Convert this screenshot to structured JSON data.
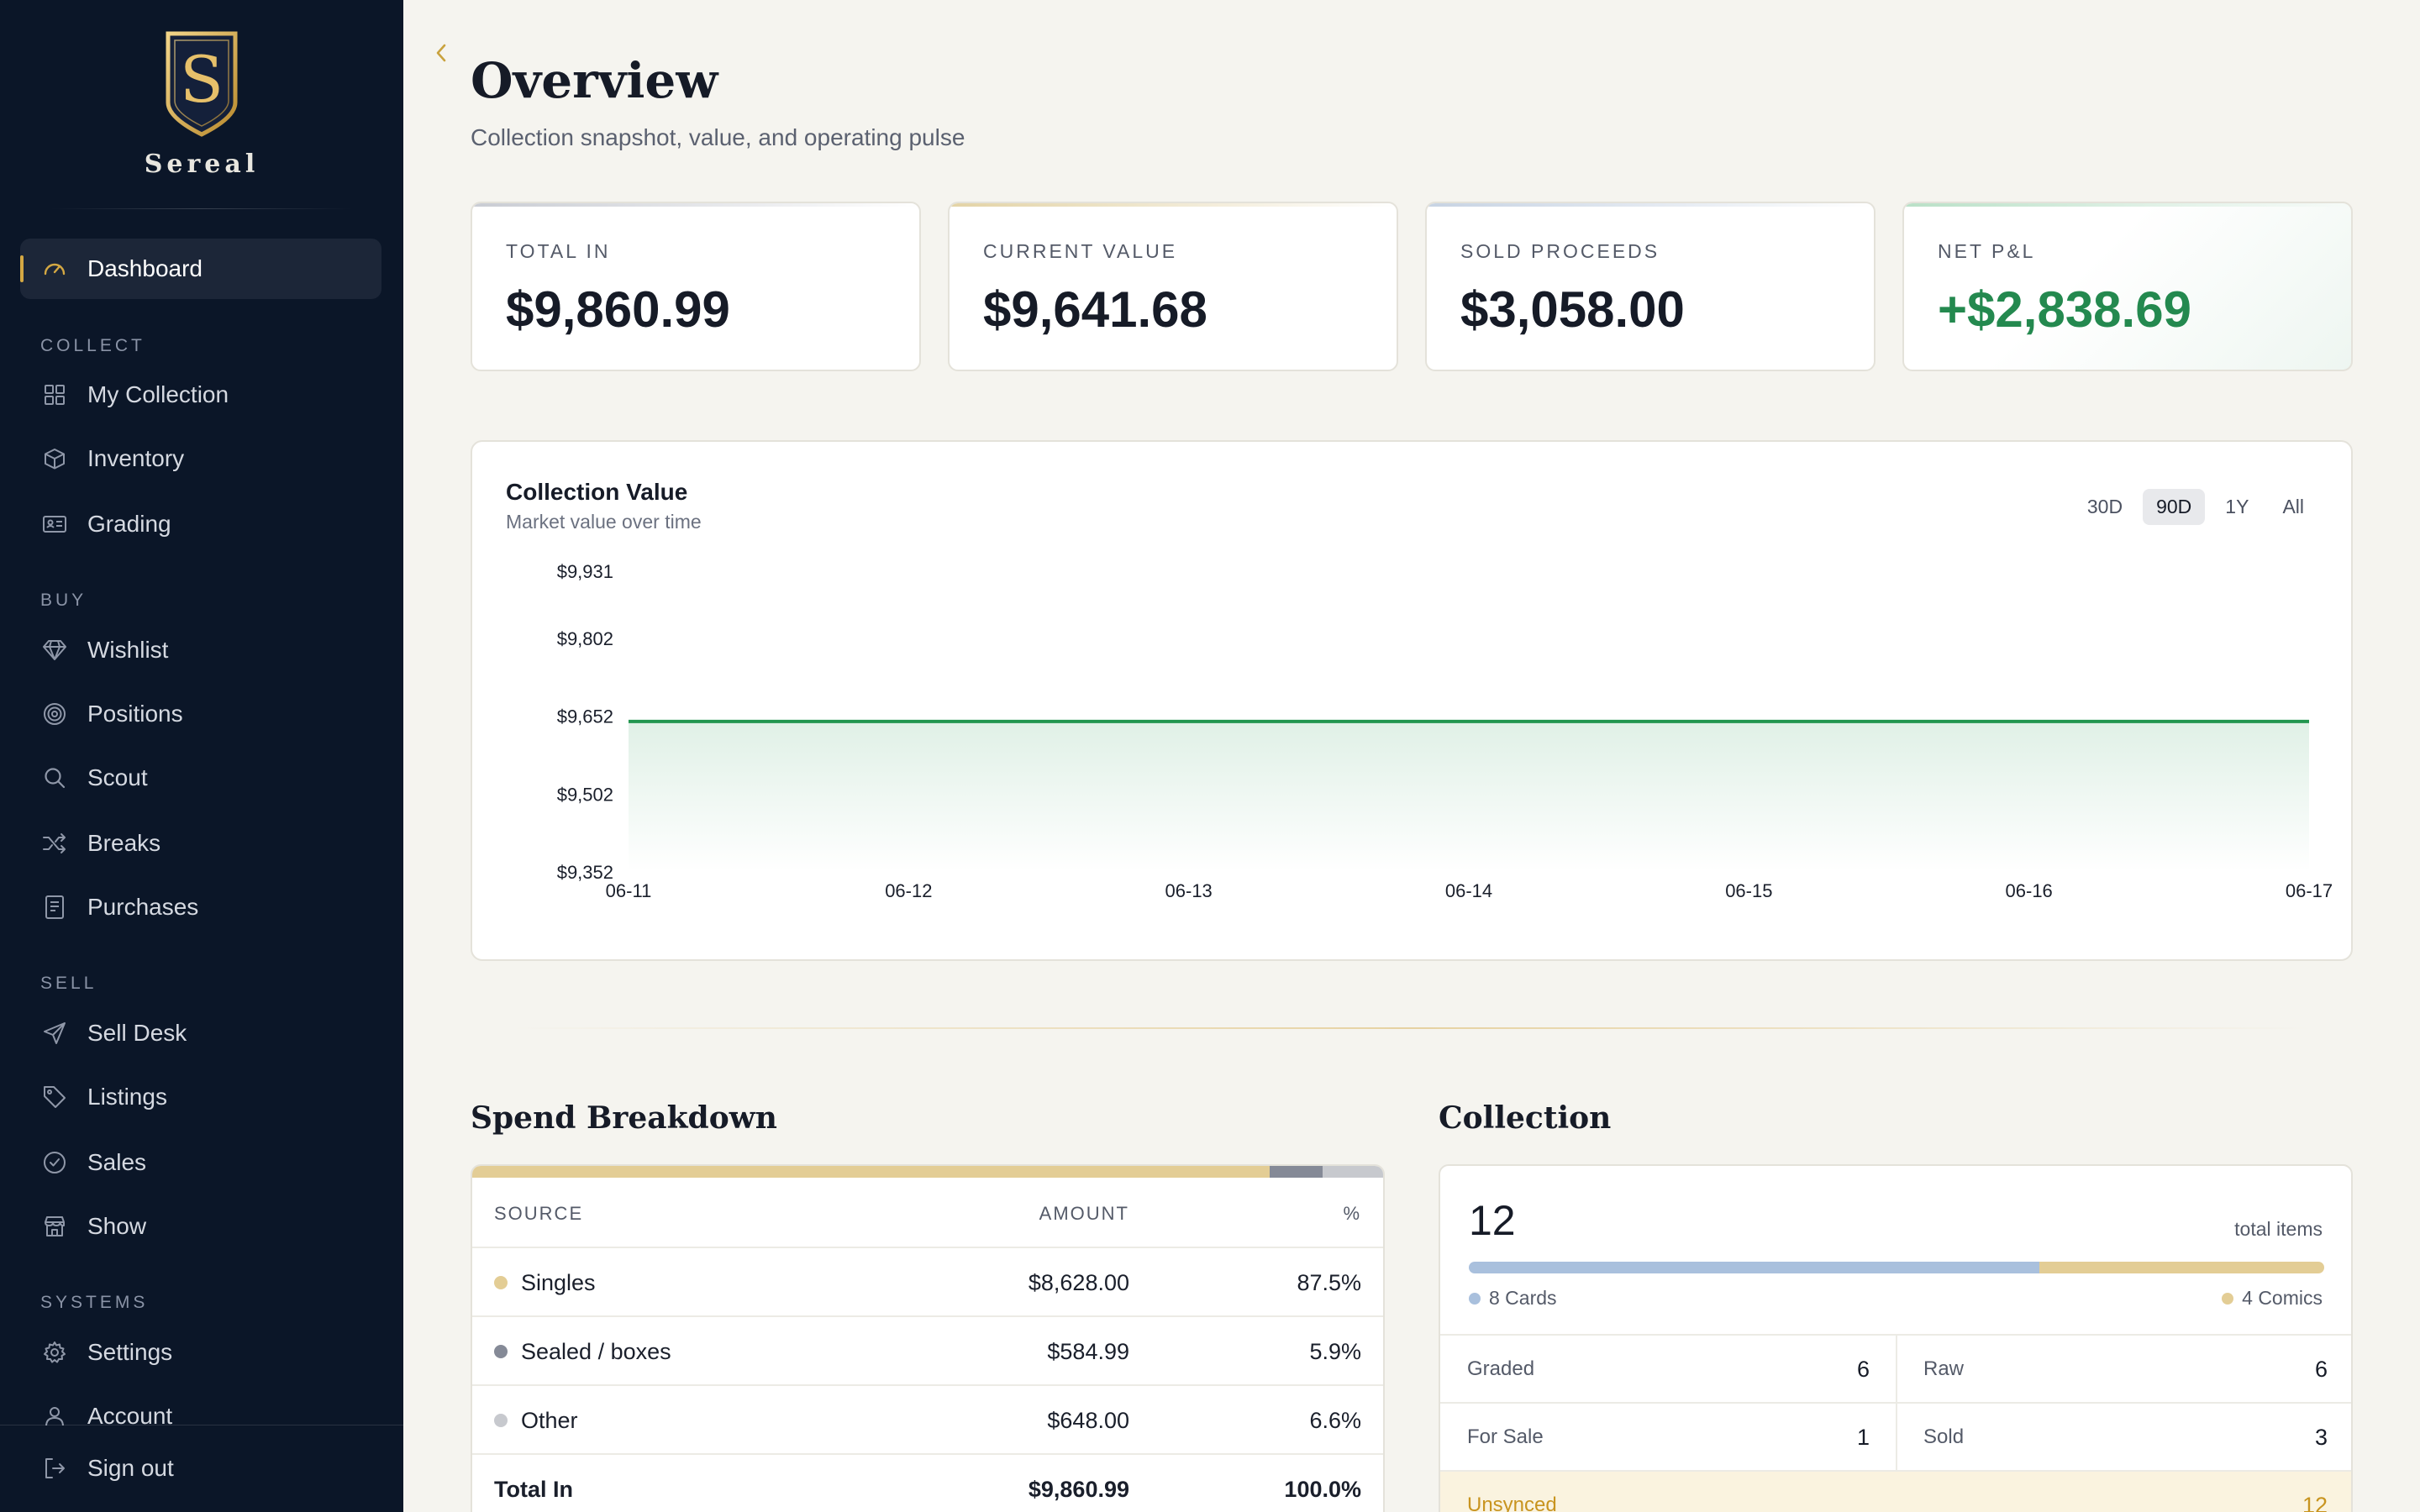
{
  "brand": {
    "name": "Sereal",
    "monogram": "S"
  },
  "sidebar": {
    "dashboard": {
      "label": "Dashboard",
      "icon": "gauge-icon"
    },
    "sections": [
      {
        "title": "COLLECT",
        "items": [
          {
            "label": "My Collection",
            "icon": "grid-icon"
          },
          {
            "label": "Inventory",
            "icon": "box-icon"
          },
          {
            "label": "Grading",
            "icon": "id-card-icon"
          }
        ]
      },
      {
        "title": "BUY",
        "items": [
          {
            "label": "Wishlist",
            "icon": "diamond-icon"
          },
          {
            "label": "Positions",
            "icon": "target-icon"
          },
          {
            "label": "Scout",
            "icon": "search-icon"
          },
          {
            "label": "Breaks",
            "icon": "shuffle-icon"
          },
          {
            "label": "Purchases",
            "icon": "receipt-icon"
          }
        ]
      },
      {
        "title": "SELL",
        "items": [
          {
            "label": "Sell Desk",
            "icon": "send-icon"
          },
          {
            "label": "Listings",
            "icon": "tag-icon"
          },
          {
            "label": "Sales",
            "icon": "check-circle-icon"
          },
          {
            "label": "Show",
            "icon": "store-icon"
          }
        ]
      },
      {
        "title": "SYSTEMS",
        "items": [
          {
            "label": "Settings",
            "icon": "gear-icon"
          },
          {
            "label": "Account",
            "icon": "user-icon"
          }
        ]
      }
    ],
    "sign_out": {
      "label": "Sign out",
      "icon": "sign-out-icon"
    }
  },
  "header": {
    "title": "Overview",
    "subtitle": "Collection snapshot, value, and operating pulse"
  },
  "kpis": [
    {
      "label": "TOTAL IN",
      "value": "$9,860.99",
      "accent": "#c9ccd3"
    },
    {
      "label": "CURRENT VALUE",
      "value": "$9,641.68",
      "accent": "#e3d3a6"
    },
    {
      "label": "SOLD PROCEEDS",
      "value": "$3,058.00",
      "accent": "#c7d3e3"
    },
    {
      "label": "NET P&L",
      "value": "+$2,838.69",
      "accent": "#b9e0c7"
    }
  ],
  "chart": {
    "title": "Collection Value",
    "subtitle": "Market value over time",
    "ranges": [
      "30D",
      "90D",
      "1Y",
      "All"
    ],
    "active_range": "90D"
  },
  "chart_data": {
    "type": "area",
    "x": [
      "06-11",
      "06-12",
      "06-13",
      "06-14",
      "06-15",
      "06-16",
      "06-17"
    ],
    "values": [
      9641.68,
      9641.68,
      9641.68,
      9641.68,
      9641.68,
      9641.68,
      9641.68
    ],
    "yticks": [
      "$9,931",
      "$9,802",
      "$9,652",
      "$9,502",
      "$9,352"
    ],
    "ytick_values": [
      9931,
      9802,
      9652,
      9502,
      9352
    ],
    "ylim": [
      9352,
      9931
    ],
    "color": "#22964f",
    "grid": false
  },
  "spend": {
    "title": "Spend Breakdown",
    "headers": {
      "source": "SOURCE",
      "amount": "AMOUNT",
      "pct": "%"
    },
    "rows": [
      {
        "source": "Singles",
        "amount": "$8,628.00",
        "pct": "87.5%",
        "share": 87.5,
        "color": "#e3cd95"
      },
      {
        "source": "Sealed / boxes",
        "amount": "$584.99",
        "pct": "5.9%",
        "share": 5.9,
        "color": "#858a97"
      },
      {
        "source": "Other",
        "amount": "$648.00",
        "pct": "6.6%",
        "share": 6.6,
        "color": "#c7c9ce"
      }
    ],
    "total": {
      "source": "Total In",
      "amount": "$9,860.99",
      "pct": "100.0%"
    }
  },
  "collection": {
    "title": "Collection",
    "count": "12",
    "count_label": "total items",
    "split": [
      {
        "label": "8 Cards",
        "count": 8,
        "color": "#a9c0dd"
      },
      {
        "label": "4 Comics",
        "count": 4,
        "color": "#e3cd95"
      }
    ],
    "stats": [
      {
        "label": "Graded",
        "value": "6"
      },
      {
        "label": "Raw",
        "value": "6"
      },
      {
        "label": "For Sale",
        "value": "1"
      },
      {
        "label": "Sold",
        "value": "3"
      }
    ],
    "unsynced": {
      "label": "Unsynced",
      "value": "12"
    }
  }
}
